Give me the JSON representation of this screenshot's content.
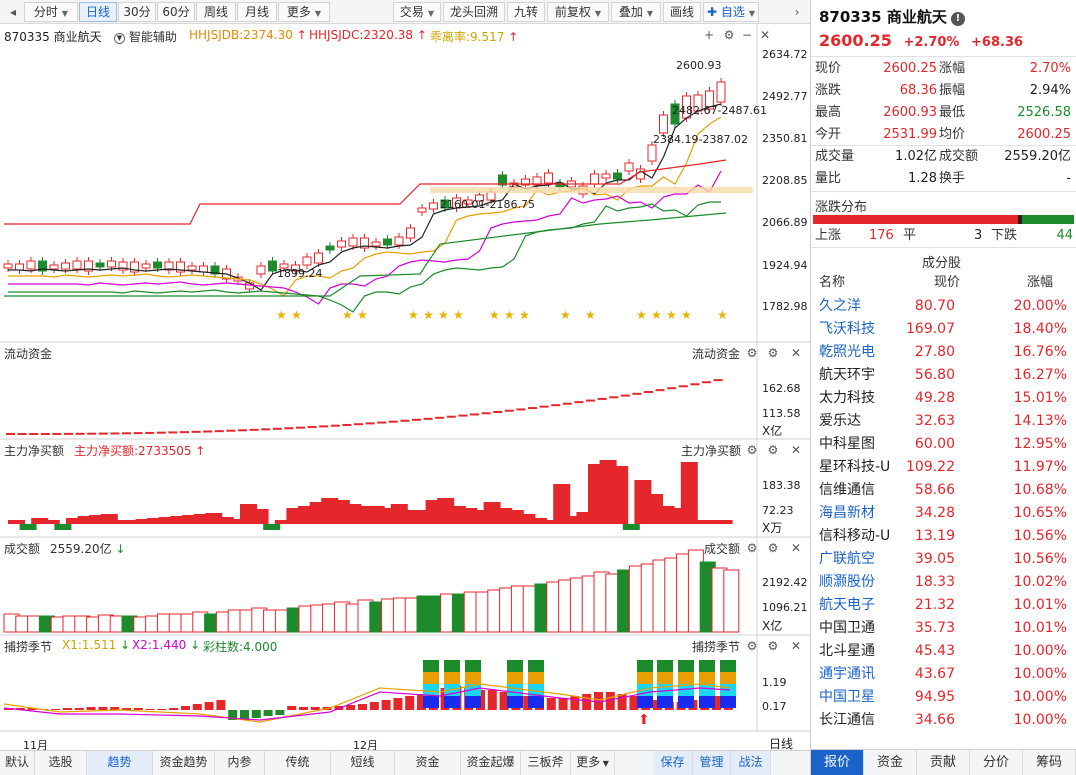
{
  "toolbar": {
    "left_buttons": [
      {
        "label": "分时",
        "dropdown": true,
        "active": false
      },
      {
        "label": "日线",
        "dropdown": false,
        "active": true
      },
      {
        "label": "30分",
        "dropdown": false,
        "active": false
      },
      {
        "label": "60分",
        "dropdown": false,
        "active": false
      },
      {
        "label": "周线",
        "dropdown": false,
        "active": false
      },
      {
        "label": "月线",
        "dropdown": false,
        "active": false
      },
      {
        "label": "更多",
        "dropdown": true,
        "active": false
      }
    ],
    "right_buttons": [
      {
        "label": "交易",
        "dropdown": true
      },
      {
        "label": "龙头回溯",
        "dropdown": false
      },
      {
        "label": "九转",
        "dropdown": false
      },
      {
        "label": "前复权",
        "dropdown": true
      },
      {
        "label": "叠加",
        "dropdown": true
      },
      {
        "label": "画线",
        "dropdown": false
      },
      {
        "label": "自选",
        "dropdown": true
      }
    ]
  },
  "chart_header": {
    "code_name": "870335 商业航天",
    "assist": "智能辅助",
    "ind1": "HHJSJDB:2374.30",
    "ind2": "HHJSJDC:2320.38",
    "ind3": "乖离率:9.517"
  },
  "main_axis": [
    "2634.72",
    "2492.77",
    "2350.81",
    "2208.85",
    "2066.89",
    "1924.94",
    "1782.98"
  ],
  "annotations": {
    "high": "2600.93",
    "low": "1899.24",
    "band1": "2482.67-2487.61",
    "band2": "2384.19-2387.02",
    "band3": "2160.01-2186.75"
  },
  "panels": {
    "flow": {
      "title": "流动资金",
      "title_right": "流动资金",
      "axis": [
        "162.68",
        "113.58"
      ],
      "unit": "X亿"
    },
    "net": {
      "title": "主力净买额",
      "value": "主力净买额:2733505",
      "title_right": "主力净买额",
      "axis": [
        "183.38",
        "72.23"
      ],
      "unit": "X万"
    },
    "vol": {
      "title": "成交额",
      "value": "2559.20亿",
      "title_right": "成交额",
      "axis": [
        "2192.42",
        "1096.21"
      ],
      "unit": "X亿"
    },
    "season": {
      "title": "捕捞季节",
      "x1": "X1:1.511",
      "x2": "X2:1.440",
      "bars": "彩柱数:4.000",
      "title_right": "捕捞季节",
      "axis": [
        "1.19",
        "0.17"
      ]
    }
  },
  "x_labels": [
    "11月",
    "12月"
  ],
  "period": "日线",
  "bottom_tabs": [
    "默认",
    "选股",
    "趋势",
    "资金趋势",
    "内参",
    "传统",
    "短线",
    "资金",
    "资金起爆",
    "三板斧",
    "更多",
    "保存",
    "管理",
    "战法"
  ],
  "colors": {
    "up": "#e5262b",
    "down": "#1d8b2c",
    "accent": "#1a63c9"
  },
  "quote": {
    "title": "870335 商业航天",
    "price": "2600.25",
    "pct": "+2.70%",
    "chg": "+68.36",
    "rows": [
      {
        "k": "现价",
        "v": "2600.25",
        "k2": "涨幅",
        "v2": "2.70%"
      },
      {
        "k": "涨跌",
        "v": "68.36",
        "k2": "振幅",
        "v2": "2.94%"
      },
      {
        "k": "最高",
        "v": "2600.93",
        "k2": "最低",
        "v2": "2526.58"
      },
      {
        "k": "今开",
        "v": "2531.99",
        "k2": "均价",
        "v2": "2600.25"
      }
    ],
    "rows2": [
      {
        "k": "成交量",
        "v": "1.02亿",
        "k2": "成交额",
        "v2": "2559.20亿"
      },
      {
        "k": "量比",
        "v": "1.28",
        "k2": "换手",
        "v2": "-"
      }
    ],
    "dist": {
      "title": "涨跌分布",
      "up_label": "上涨",
      "up": "176",
      "flat_label": "平",
      "flat": "3",
      "down_label": "下跌",
      "down": "44"
    },
    "members_title": "成分股",
    "cols": [
      "名称",
      "现价",
      "涨幅"
    ],
    "members": [
      {
        "name": "久之洋",
        "price": "80.70",
        "chg": "20.00%",
        "link": true
      },
      {
        "name": "飞沃科技",
        "price": "169.07",
        "chg": "18.40%",
        "link": true
      },
      {
        "name": "乾照光电",
        "price": "27.80",
        "chg": "16.76%",
        "link": true
      },
      {
        "name": "航天环宇",
        "price": "56.80",
        "chg": "16.27%",
        "link": false
      },
      {
        "name": "太力科技",
        "price": "49.28",
        "chg": "15.01%",
        "link": false
      },
      {
        "name": "爱乐达",
        "price": "32.63",
        "chg": "14.13%",
        "link": false
      },
      {
        "name": "中科星图",
        "price": "60.00",
        "chg": "12.95%",
        "link": false
      },
      {
        "name": "星环科技-U",
        "price": "109.22",
        "chg": "11.97%",
        "link": false
      },
      {
        "name": "信维通信",
        "price": "58.66",
        "chg": "10.68%",
        "link": false
      },
      {
        "name": "海昌新材",
        "price": "34.28",
        "chg": "10.65%",
        "link": true
      },
      {
        "name": "信科移动-U",
        "price": "13.19",
        "chg": "10.56%",
        "link": false
      },
      {
        "name": "广联航空",
        "price": "39.05",
        "chg": "10.56%",
        "link": true
      },
      {
        "name": "顺灏股份",
        "price": "18.33",
        "chg": "10.02%",
        "link": true
      },
      {
        "name": "航天电子",
        "price": "21.32",
        "chg": "10.01%",
        "link": true
      },
      {
        "name": "中国卫通",
        "price": "35.73",
        "chg": "10.01%",
        "link": false
      },
      {
        "name": "北斗星通",
        "price": "45.43",
        "chg": "10.00%",
        "link": false
      },
      {
        "name": "通宇通讯",
        "price": "43.67",
        "chg": "10.00%",
        "link": true
      },
      {
        "name": "中国卫星",
        "price": "94.95",
        "chg": "10.00%",
        "link": true
      },
      {
        "name": "长江通信",
        "price": "34.66",
        "chg": "10.00%",
        "link": false
      }
    ],
    "tabs": [
      "报价",
      "资金",
      "贡献",
      "分价",
      "筹码"
    ]
  }
}
